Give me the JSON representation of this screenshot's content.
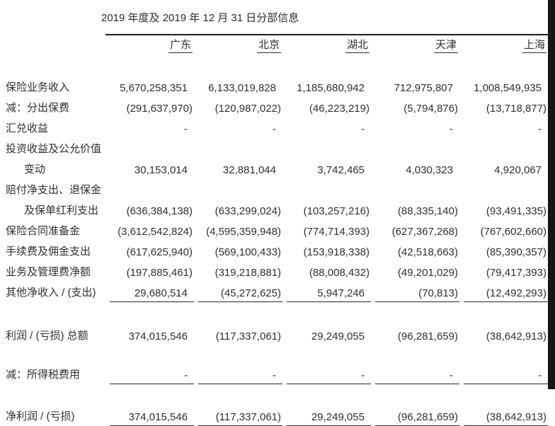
{
  "title": "2019 年度及 2019 年 12 月 31 日分部信息",
  "colors": {
    "text": "#2f2f2f",
    "rules": "#262626",
    "right_bar": "#161616",
    "background": "#ffffff"
  },
  "table": {
    "columns": [
      "广东",
      "北京",
      "湖北",
      "天津",
      "上海"
    ],
    "rows": [
      {
        "label": "保险业务收入",
        "values": [
          "5,670,258,351",
          "6,133,019,828",
          "1,185,680,942",
          "712,975,807",
          "1,008,549,935"
        ]
      },
      {
        "label": "减：分出保费",
        "values": [
          "(291,637,970)",
          "(120,987,022)",
          "(46,223,219)",
          "(5,794,876)",
          "(13,718,877)"
        ]
      },
      {
        "label": "汇兑收益",
        "values": [
          "-",
          "-",
          "-",
          "-",
          "-"
        ]
      },
      {
        "label": "投资收益及公允价值",
        "values": null
      },
      {
        "label": "变动",
        "indent": true,
        "values": [
          "30,153,014",
          "32,881,044",
          "3,742,465",
          "4,030,323",
          "4,920,067"
        ]
      },
      {
        "label": "赔付净支出、退保金",
        "values": null
      },
      {
        "label": "及保单红利支出",
        "indent": true,
        "values": [
          "(636,384,138)",
          "(633,299,024)",
          "(103,257,216)",
          "(88,335,140)",
          "(93,491,335)"
        ]
      },
      {
        "label": "保险合同准备金",
        "values": [
          "(3,612,542,824)",
          "(4,595,359,948)",
          "(774,714,393)",
          "(627,367,268)",
          "(767,602,660)"
        ]
      },
      {
        "label": "手续费及佣金支出",
        "values": [
          "(617,625,940)",
          "(569,100,433)",
          "(153,918,338)",
          "(42,518,663)",
          "(85,390,357)"
        ]
      },
      {
        "label": "业务及管理费净额",
        "values": [
          "(197,885,461)",
          "(319,218,881)",
          "(88,008,432)",
          "(49,201,029)",
          "(79,417,393)"
        ]
      },
      {
        "label": "其他净收入 / (支出)",
        "values": [
          "29,680,514",
          "(45,272,625)",
          "5,947,246",
          "(70,813)",
          "(12,492,293)"
        ],
        "rule_below": true
      },
      {
        "spacer": 32
      },
      {
        "label": "利润 / (亏损) 总额",
        "values": [
          "374,015,546",
          "(117,337,061)",
          "29,249,055",
          "(96,281,659)",
          "(38,642,913)"
        ]
      },
      {
        "spacer": 26
      },
      {
        "label": "减：所得税费用",
        "values": [
          "-",
          "-",
          "-",
          "-",
          "-"
        ],
        "rule_below": true
      },
      {
        "spacer": 30
      },
      {
        "label": "净利润 / (亏损)",
        "values": [
          "374,015,546",
          "(117,337,061)",
          "29,249,055",
          "(96,281,659)",
          "(38,642,913)"
        ],
        "rule_below": true
      }
    ]
  }
}
